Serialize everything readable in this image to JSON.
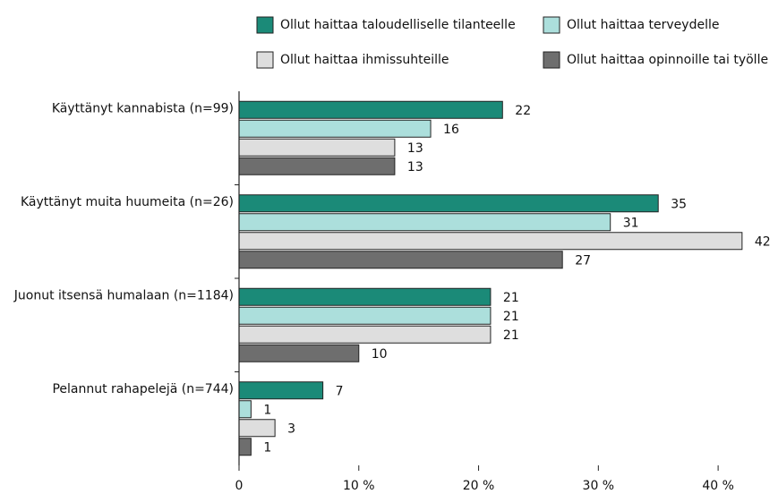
{
  "chart_data": {
    "type": "bar",
    "orientation": "horizontal",
    "categories": [
      "Käyttänyt kannabista (n=99)",
      "Käyttänyt muita huumeita (n=26)",
      "Juonut itsensä humalaan (n=1184)",
      "Pelannut rahapelejä (n=744)"
    ],
    "series": [
      {
        "name": "Ollut haittaa taloudelliselle tilanteelle",
        "color": "#1b8a78",
        "values": [
          22,
          35,
          21,
          7
        ]
      },
      {
        "name": "Ollut haittaa terveydelle",
        "color": "#acdfdc",
        "values": [
          16,
          31,
          21,
          1
        ]
      },
      {
        "name": "Ollut haittaa ihmissuhteille",
        "color": "#dedede",
        "values": [
          13,
          42,
          21,
          3
        ]
      },
      {
        "name": "Ollut haittaa opinnoille tai työlle",
        "color": "#6e6e6e",
        "values": [
          13,
          27,
          10,
          1
        ]
      }
    ],
    "xlim": [
      0,
      45
    ],
    "xticks": [
      0,
      {
        "value": 10,
        "label": "10 %"
      },
      {
        "value": 20,
        "label": "20 %"
      },
      {
        "value": 30,
        "label": "30 %"
      },
      {
        "value": 40,
        "label": "40 %"
      }
    ]
  }
}
